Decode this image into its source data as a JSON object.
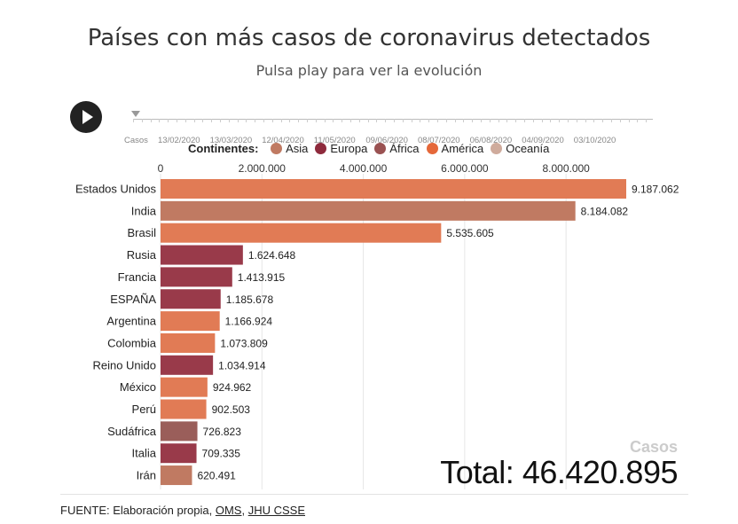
{
  "title": "Países con más casos de coronavirus detectados",
  "subtitle": "Pulsa play para ver la evolución",
  "timeline": {
    "start_label": "Casos",
    "dates": [
      "13/02/2020",
      "13/03/2020",
      "12/04/2020",
      "11/05/2020",
      "09/06/2020",
      "08/07/2020",
      "06/08/2020",
      "04/09/2020",
      "03/10/2020"
    ],
    "position": 0
  },
  "legend": {
    "title": "Continentes:",
    "items": [
      {
        "label": "Asia",
        "color": "#c07a62"
      },
      {
        "label": "Europa",
        "color": "#8e2a3c"
      },
      {
        "label": "África",
        "color": "#9a5252"
      },
      {
        "label": "América",
        "color": "#e5683a"
      },
      {
        "label": "Oceanía",
        "color": "#cfab9c"
      }
    ]
  },
  "total": {
    "metric_label": "Casos",
    "text": "Total: 46.420.895"
  },
  "footer": {
    "prefix": "FUENTE: Elaboración propia, ",
    "link1": "OMS",
    "separator": ", ",
    "link2": "JHU CSSE"
  },
  "chart_data": {
    "type": "bar",
    "orientation": "horizontal",
    "xlim": [
      0,
      9187062
    ],
    "ticks": [
      0,
      2000000,
      4000000,
      6000000,
      8000000
    ],
    "tick_labels": [
      "0",
      "2.000.000",
      "4.000.000",
      "6.000.000",
      "8.000.000"
    ],
    "categories": [
      "Estados Unidos",
      "India",
      "Brasil",
      "Rusia",
      "Francia",
      "ESPAÑA",
      "Argentina",
      "Colombia",
      "Reino Unido",
      "México",
      "Perú",
      "Sudáfrica",
      "Italia",
      "Irán"
    ],
    "values": [
      9187062,
      8184082,
      5535605,
      1624648,
      1413915,
      1185678,
      1166924,
      1073809,
      1034914,
      924962,
      902503,
      726823,
      709335,
      620491
    ],
    "value_labels": [
      "9.187.062",
      "8.184.082",
      "5.535.605",
      "1.624.648",
      "1.413.915",
      "1.185.678",
      "1.166.924",
      "1.073.809",
      "1.034.914",
      "924.962",
      "902.503",
      "726.823",
      "709.335",
      "620.491"
    ],
    "continents": [
      "América",
      "Asia",
      "América",
      "Europa",
      "Europa",
      "Europa",
      "América",
      "América",
      "Europa",
      "América",
      "América",
      "África",
      "Europa",
      "Asia"
    ],
    "colors": {
      "Asia": "#c07a62",
      "Europa": "#993a4a",
      "África": "#9a5e5a",
      "América": "#e17b55",
      "Oceanía": "#cfab9c"
    },
    "grid": true
  }
}
